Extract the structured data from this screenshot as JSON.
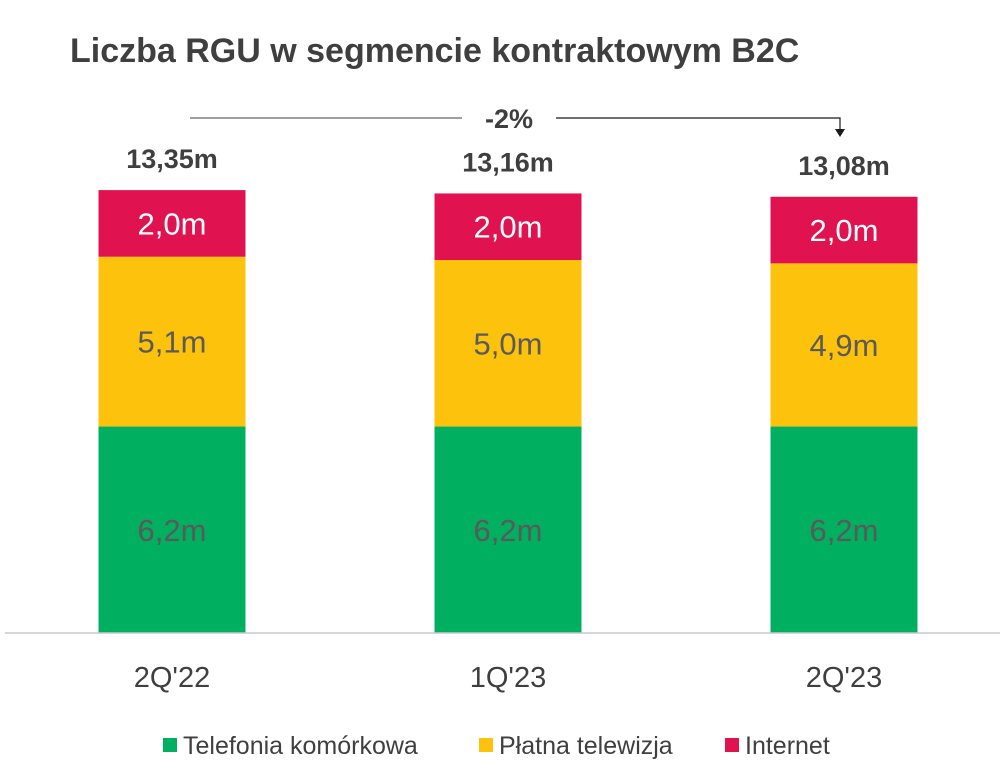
{
  "chart_data": {
    "type": "bar",
    "stacked": true,
    "title": "Liczba RGU w segmencie kontraktowym B2C",
    "categories": [
      "2Q'22",
      "1Q'23",
      "2Q'23"
    ],
    "series": [
      {
        "name": "Telefonia komórkowa",
        "color": "#00b060",
        "label_color": "#5a5a5a",
        "values": [
          6.2,
          6.2,
          6.2
        ],
        "labels": [
          "6,2m",
          "6,2m",
          "6,2m"
        ]
      },
      {
        "name": "Płatna telewizja",
        "color": "#fcc20c",
        "label_color": "#5a5a5a",
        "values": [
          5.1,
          5.0,
          4.9
        ],
        "labels": [
          "5,1m",
          "5,0m",
          "4,9m"
        ]
      },
      {
        "name": "Internet",
        "color": "#e0124f",
        "label_color": "#ffffff",
        "values": [
          2.0,
          2.0,
          2.0
        ],
        "labels": [
          "2,0m",
          "2,0m",
          "2,0m"
        ]
      }
    ],
    "totals": [
      13.35,
      13.16,
      13.08
    ],
    "total_labels": [
      "13,35m",
      "13,16m",
      "13,08m"
    ],
    "change_label": "-2%",
    "legend_position": "bottom",
    "grid": false
  }
}
